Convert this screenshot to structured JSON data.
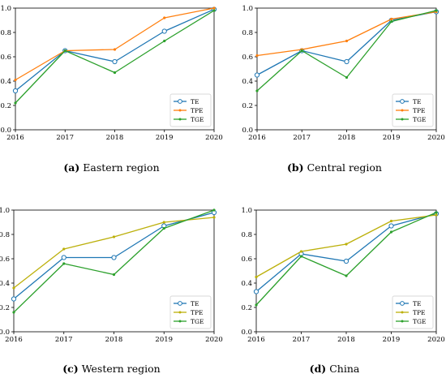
{
  "chart_data": [
    {
      "type": "line",
      "caption_letter": "(a)",
      "caption_text": "Eastern region",
      "categories": [
        "2016",
        "2017",
        "2018",
        "2019",
        "2020"
      ],
      "ylim": [
        0,
        1.0
      ],
      "yticks": [
        "0.0",
        "0.2",
        "0.4",
        "0.6",
        "0.8",
        "1.0"
      ],
      "grid": false,
      "legend_position": "lower-right",
      "series": [
        {
          "name": "TE",
          "color": "#1f77b4",
          "marker": "circle",
          "values": [
            0.32,
            0.65,
            0.56,
            0.81,
            0.99
          ]
        },
        {
          "name": "TPE",
          "color": "#ff7f0e",
          "marker": "point",
          "values": [
            0.41,
            0.65,
            0.66,
            0.92,
            1.0
          ]
        },
        {
          "name": "TGE",
          "color": "#2ca02c",
          "marker": "point",
          "values": [
            0.22,
            0.65,
            0.47,
            0.73,
            0.98
          ]
        }
      ]
    },
    {
      "type": "line",
      "caption_letter": "(b)",
      "caption_text": "Central region",
      "categories": [
        "2016",
        "2017",
        "2018",
        "2019",
        "2020"
      ],
      "ylim": [
        0,
        1.0
      ],
      "yticks": [
        "0.0",
        "0.2",
        "0.4",
        "0.6",
        "0.8",
        "1.0"
      ],
      "grid": false,
      "legend_position": "lower-right",
      "series": [
        {
          "name": "TE",
          "color": "#1f77b4",
          "marker": "circle",
          "values": [
            0.45,
            0.65,
            0.56,
            0.9,
            0.97
          ]
        },
        {
          "name": "TPE",
          "color": "#ff7f0e",
          "marker": "point",
          "values": [
            0.61,
            0.66,
            0.73,
            0.91,
            0.97
          ]
        },
        {
          "name": "TGE",
          "color": "#2ca02c",
          "marker": "point",
          "values": [
            0.32,
            0.65,
            0.43,
            0.89,
            0.98
          ]
        }
      ]
    },
    {
      "type": "line",
      "caption_letter": "(c)",
      "caption_text": "Western region",
      "categories": [
        "2016",
        "2017",
        "2018",
        "2019",
        "2020"
      ],
      "ylim": [
        0,
        1.0
      ],
      "yticks": [
        "0.0",
        "0.2",
        "0.4",
        "0.6",
        "0.8",
        "1.0"
      ],
      "grid": false,
      "legend_position": "lower-right",
      "series": [
        {
          "name": "TE",
          "color": "#1f77b4",
          "marker": "circle",
          "values": [
            0.27,
            0.61,
            0.61,
            0.87,
            0.98
          ]
        },
        {
          "name": "TPE",
          "color": "#bcb00b",
          "marker": "point",
          "values": [
            0.36,
            0.68,
            0.78,
            0.9,
            0.94
          ]
        },
        {
          "name": "TGE",
          "color": "#2ca02c",
          "marker": "point",
          "values": [
            0.16,
            0.56,
            0.47,
            0.85,
            1.0
          ]
        }
      ]
    },
    {
      "type": "line",
      "caption_letter": "(d)",
      "caption_text": "China",
      "categories": [
        "2016",
        "2017",
        "2018",
        "2019",
        "2020"
      ],
      "ylim": [
        0,
        1.0
      ],
      "yticks": [
        "0.0",
        "0.2",
        "0.4",
        "0.6",
        "0.8",
        "1.0"
      ],
      "grid": false,
      "legend_position": "lower-right",
      "series": [
        {
          "name": "TE",
          "color": "#1f77b4",
          "marker": "circle",
          "values": [
            0.33,
            0.64,
            0.58,
            0.87,
            0.97
          ]
        },
        {
          "name": "TPE",
          "color": "#bcb00b",
          "marker": "point",
          "values": [
            0.45,
            0.66,
            0.72,
            0.91,
            0.96
          ]
        },
        {
          "name": "TGE",
          "color": "#2ca02c",
          "marker": "point",
          "values": [
            0.22,
            0.62,
            0.46,
            0.82,
            0.98
          ]
        }
      ]
    }
  ]
}
